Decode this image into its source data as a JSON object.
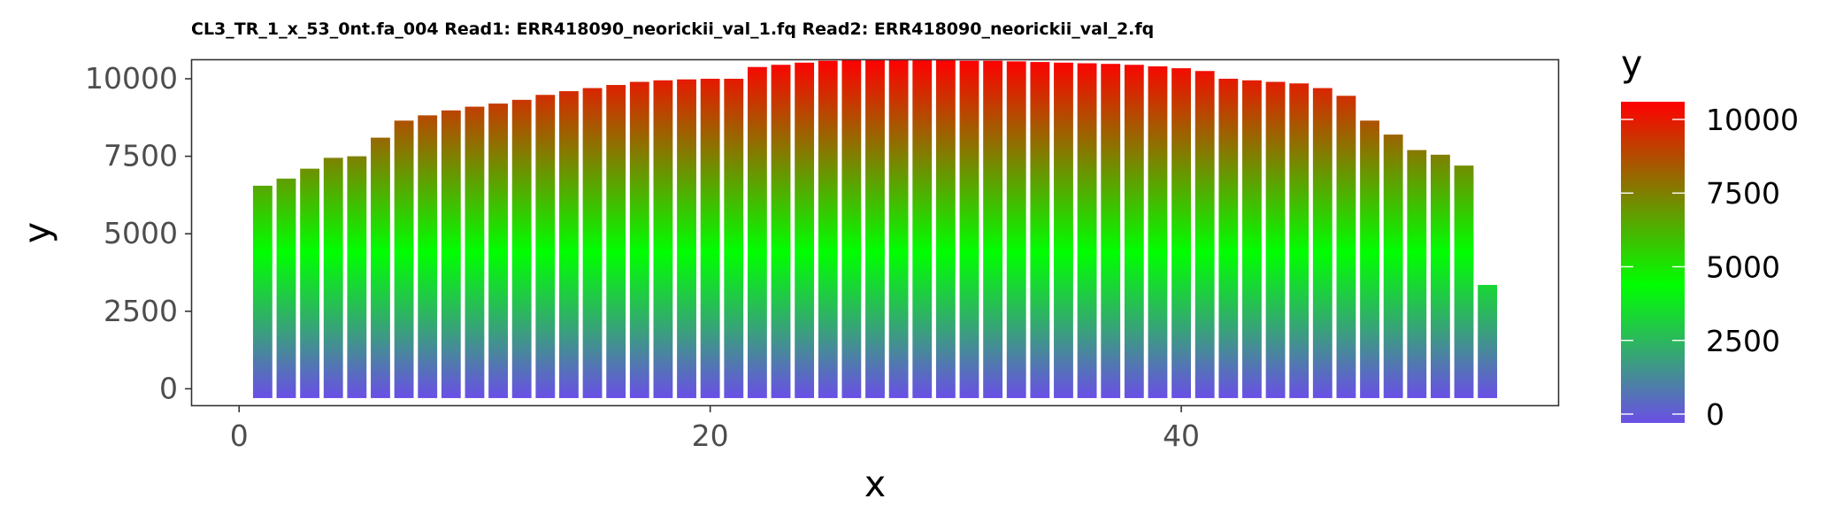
{
  "chart_data": {
    "type": "bar",
    "title": "CL3_TR_1_x_53_0nt.fa_004 Read1: ERR418090_neorickii_val_1.fq Read2: ERR418090_neorickii_val_2.fq",
    "xlabel": "x",
    "ylabel": "y",
    "xlim": [
      -2,
      56
    ],
    "ylim": [
      -530,
      10600
    ],
    "x_ticks": [
      0,
      20,
      40
    ],
    "x_tick_labels": [
      "0",
      "20",
      "40"
    ],
    "y_ticks": [
      0,
      2500,
      5000,
      7500,
      10000
    ],
    "y_tick_labels": [
      "0",
      "2500",
      "5000",
      "7500",
      "10000"
    ],
    "grid": false,
    "legend": {
      "title": "y",
      "placement": "right",
      "type": "colorbar",
      "ticks": [
        0,
        2500,
        5000,
        7500,
        10000
      ],
      "tick_labels": [
        "0",
        "2500",
        "5000",
        "7500",
        "10000"
      ],
      "range": [
        -300,
        10600
      ]
    },
    "fill_gradient": {
      "low": "#6a4fe6",
      "mid": "#00ff00",
      "high": "#ff0000",
      "midpoint": 4400
    },
    "baseline": -300,
    "x": [
      1,
      2,
      3,
      4,
      5,
      6,
      7,
      8,
      9,
      10,
      11,
      12,
      13,
      14,
      15,
      16,
      17,
      18,
      19,
      20,
      21,
      22,
      23,
      24,
      25,
      26,
      27,
      28,
      29,
      30,
      31,
      32,
      33,
      34,
      35,
      36,
      37,
      38,
      39,
      40,
      41,
      42,
      43,
      44,
      45,
      46,
      47,
      48,
      49,
      50,
      51,
      52,
      53
    ],
    "values": [
      6550,
      6780,
      7100,
      7450,
      7500,
      8100,
      8650,
      8820,
      8980,
      9100,
      9200,
      9320,
      9480,
      9600,
      9700,
      9800,
      9900,
      9950,
      9980,
      10000,
      10000,
      10380,
      10450,
      10520,
      10580,
      10600,
      10600,
      10600,
      10600,
      10600,
      10580,
      10580,
      10560,
      10540,
      10520,
      10500,
      10480,
      10450,
      10400,
      10340,
      10250,
      10000,
      9950,
      9900,
      9850,
      9700,
      9450,
      8650,
      8200,
      7700,
      7550,
      7200,
      3350
    ]
  }
}
